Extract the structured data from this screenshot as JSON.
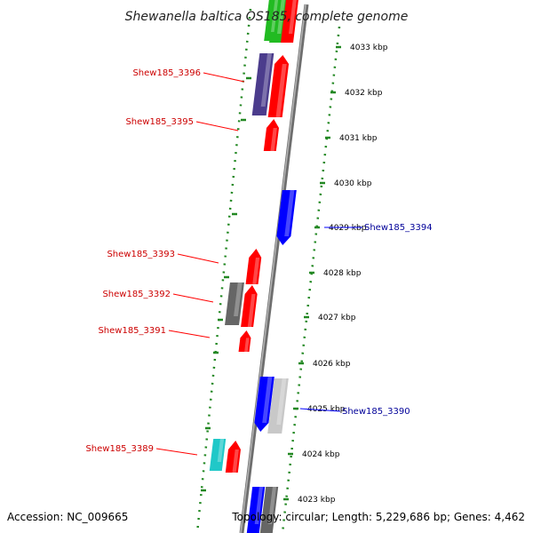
{
  "title": "Shewanella baltica OS185, complete genome",
  "accession": "Accession: NC_009665",
  "summary": "Topology: circular; Length: 5,229,686 bp; Genes: 4,462",
  "colors": {
    "red": "#ff0000",
    "blue": "#0000ff",
    "purple": "#4b3c8c",
    "gray": "#666666",
    "lightgray": "#c8c8c8",
    "cyan": "#20c8c8",
    "green": "#22bb22",
    "dotted_track": "#228822",
    "backbone": "#888888"
  },
  "scale": {
    "ticks": [
      {
        "label": "4033 kbp"
      },
      {
        "label": "4032 kbp"
      },
      {
        "label": "4031 kbp"
      },
      {
        "label": "4030 kbp"
      },
      {
        "label": "4029 kbp"
      },
      {
        "label": "4028 kbp"
      },
      {
        "label": "4027 kbp"
      },
      {
        "label": "4026 kbp"
      },
      {
        "label": "4025 kbp"
      },
      {
        "label": "4024 kbp"
      },
      {
        "label": "4023 kbp"
      }
    ]
  },
  "genes": [
    {
      "label": "Shew185_3396",
      "color": "red"
    },
    {
      "label": "Shew185_3395",
      "color": "red"
    },
    {
      "label": "Shew185_3394",
      "color": "blue"
    },
    {
      "label": "Shew185_3393",
      "color": "red"
    },
    {
      "label": "Shew185_3392",
      "color": "red"
    },
    {
      "label": "Shew185_3391",
      "color": "red"
    },
    {
      "label": "Shew185_3390",
      "color": "blue"
    },
    {
      "label": "Shew185_3389",
      "color": "red"
    }
  ]
}
